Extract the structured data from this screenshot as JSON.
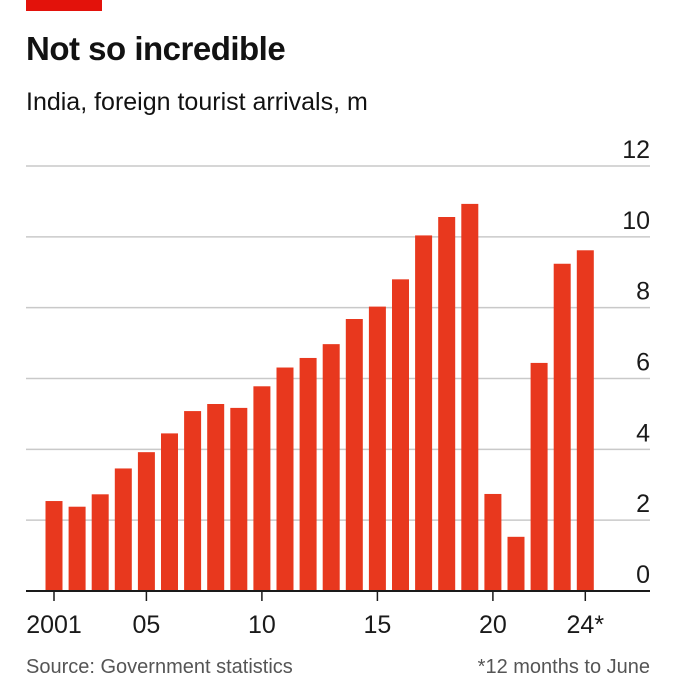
{
  "header": {
    "title": "Not so incredible",
    "subtitle": "India, foreign tourist arrivals, m"
  },
  "footer": {
    "source": "Source: Government statistics",
    "note": "*12 months to June"
  },
  "colors": {
    "bar": "#e8381e",
    "grid": "#c9c9c9",
    "axis": "#1a1a1a",
    "accent": "#e3120b"
  },
  "chart_data": {
    "type": "bar",
    "title": "Not so incredible",
    "subtitle": "India, foreign tourist arrivals, m",
    "xlabel": "",
    "ylabel": "",
    "categories": [
      "2001",
      "2002",
      "2003",
      "2004",
      "2005",
      "2006",
      "2007",
      "2008",
      "2009",
      "2010",
      "2011",
      "2012",
      "2013",
      "2014",
      "2015",
      "2016",
      "2017",
      "2018",
      "2019",
      "2020",
      "2021",
      "2022",
      "2023",
      "2024*"
    ],
    "values": [
      2.54,
      2.38,
      2.73,
      3.46,
      3.92,
      4.45,
      5.08,
      5.28,
      5.17,
      5.78,
      6.31,
      6.58,
      6.97,
      7.68,
      8.03,
      8.8,
      10.04,
      10.56,
      10.93,
      2.74,
      1.53,
      6.44,
      9.24,
      9.62
    ],
    "ylim": [
      0,
      12
    ],
    "yticks": [
      "0",
      "2",
      "4",
      "6",
      "8",
      "10",
      "12"
    ],
    "xtick_labels": [
      {
        "index": 0,
        "label": "2001"
      },
      {
        "index": 4,
        "label": "05"
      },
      {
        "index": 9,
        "label": "10"
      },
      {
        "index": 14,
        "label": "15"
      },
      {
        "index": 19,
        "label": "20"
      },
      {
        "index": 23,
        "label": "24*"
      }
    ],
    "grid": true,
    "y_axis_side": "right",
    "legend": "none"
  }
}
